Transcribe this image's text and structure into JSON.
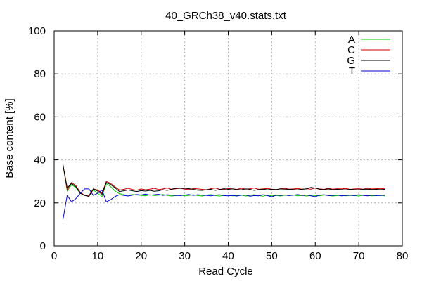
{
  "chart_data": {
    "type": "line",
    "title": "40_GRCh38_v40.stats.txt",
    "xlabel": "Read Cycle",
    "ylabel": "Base content [%]",
    "xlim": [
      0,
      80
    ],
    "ylim": [
      0,
      100
    ],
    "xticks": [
      0,
      10,
      20,
      30,
      40,
      50,
      60,
      70,
      80
    ],
    "yticks": [
      0,
      20,
      40,
      60,
      80,
      100
    ],
    "grid": true,
    "legend_position": "top-right",
    "x": [
      2,
      3,
      4,
      5,
      6,
      7,
      8,
      9,
      10,
      11,
      12,
      13,
      14,
      15,
      16,
      17,
      18,
      19,
      20,
      21,
      22,
      23,
      24,
      25,
      26,
      27,
      28,
      29,
      30,
      31,
      32,
      33,
      34,
      35,
      36,
      37,
      38,
      39,
      40,
      41,
      42,
      43,
      44,
      45,
      46,
      47,
      48,
      49,
      50,
      51,
      52,
      53,
      54,
      55,
      56,
      57,
      58,
      59,
      60,
      61,
      62,
      63,
      64,
      65,
      66,
      67,
      68,
      69,
      70,
      71,
      72,
      73,
      74,
      75,
      76
    ],
    "series": [
      {
        "name": "A",
        "color": "#00cc00",
        "values": [
          38,
          25.5,
          28.5,
          27,
          24.5,
          23.5,
          23.5,
          26,
          24.5,
          23,
          29,
          27.5,
          25.5,
          24.3,
          23.8,
          23.6,
          23.9,
          23.7,
          23.5,
          23.3,
          23.8,
          23.4,
          23.6,
          23.9,
          23.5,
          23.2,
          23.4,
          23.6,
          23.3,
          23.5,
          23.8,
          23.4,
          23.2,
          23.6,
          23.9,
          23.4,
          23.2,
          23.5,
          23.7,
          23.3,
          23.4,
          23.6,
          23.2,
          23.5,
          23.8,
          23.4,
          23.1,
          23.6,
          23.3,
          23.5,
          23.2,
          23.6,
          23.4,
          23.7,
          23.3,
          23.5,
          23.2,
          23.6,
          23.4,
          23.3,
          23.7,
          23.5,
          23.2,
          23.4,
          23.6,
          23.3,
          23.5,
          23.4,
          23.2,
          23.6,
          23.5,
          23.3,
          23.4,
          23.5,
          23.3
        ]
      },
      {
        "name": "C",
        "color": "#cc0000",
        "values": [
          38,
          26,
          29.5,
          28,
          25,
          23.5,
          23.5,
          26.5,
          26,
          24.5,
          30,
          29,
          27.5,
          26,
          26.3,
          26.8,
          26.2,
          25.9,
          26.5,
          26.1,
          26.4,
          26.8,
          26.2,
          26.5,
          26.9,
          26.3,
          26.6,
          26.8,
          26.4,
          26.2,
          26.7,
          26.5,
          26.3,
          26.1,
          26.6,
          26.9,
          26.4,
          26.2,
          26.7,
          26.5,
          26.3,
          26.8,
          26.4,
          26.6,
          26.9,
          26.3,
          26.5,
          26.7,
          26.4,
          26.2,
          26.6,
          26.8,
          26.4,
          26.5,
          26.7,
          26.3,
          26.6,
          26.4,
          26.9,
          26.5,
          26.3,
          26.8,
          26.4,
          26.6,
          26.5,
          26.7,
          26.3,
          26.5,
          26.6,
          26.4,
          26.8,
          26.5,
          26.6,
          26.7,
          26.5
        ]
      },
      {
        "name": "G",
        "color": "#000000",
        "values": [
          38,
          27,
          29,
          27.5,
          24.5,
          23.5,
          23,
          26.5,
          25.5,
          24,
          29.5,
          28.5,
          27,
          25.3,
          25.6,
          26,
          25.6,
          25.3,
          25.7,
          25.5,
          25.8,
          25.4,
          25.6,
          26.1,
          25.8,
          26.4,
          26.8,
          26.8,
          26.8,
          26.6,
          26.3,
          25.9,
          25.8,
          26.1,
          26.3,
          25.8,
          26.2,
          26.6,
          26.3,
          26.5,
          26.2,
          26.1,
          26.5,
          26.3,
          25.8,
          26.2,
          26.4,
          26.1,
          26.3,
          26.2,
          26.5,
          26.4,
          26.3,
          26.2,
          26.1,
          26.4,
          26.5,
          27.2,
          26.9,
          26.3,
          26.2,
          26.5,
          26.1,
          26.3,
          26.2,
          26.1,
          26.3,
          26.2,
          26.1,
          26.3,
          26.4,
          26.2,
          26.3,
          26.2,
          26.3
        ]
      },
      {
        "name": "T",
        "color": "#0000cc",
        "values": [
          12,
          23.5,
          20.5,
          22,
          24.5,
          26.5,
          26.5,
          23.5,
          24.5,
          26,
          20.5,
          21.5,
          23,
          23.8,
          23.5,
          23.2,
          23.6,
          23.9,
          23.7,
          24.1,
          23.6,
          23.8,
          24.0,
          23.5,
          23.8,
          23.6,
          23.5,
          23.4,
          23.7,
          23.9,
          23.5,
          23.8,
          23.6,
          23.5,
          23.3,
          23.6,
          23.8,
          23.4,
          23.3,
          23.5,
          23.2,
          23.6,
          23.7,
          23.1,
          23.4,
          23.3,
          23.8,
          23.4,
          22.8,
          23.6,
          23.5,
          23.7,
          23.4,
          23.6,
          23.9,
          23.5,
          23.7,
          23.3,
          22.9,
          23.6,
          23.8,
          23.4,
          23.5,
          23.7,
          23.3,
          23.5,
          23.6,
          23.4,
          23.8,
          23.5,
          23.3,
          23.6,
          23.4,
          23.5,
          23.6
        ]
      }
    ]
  }
}
